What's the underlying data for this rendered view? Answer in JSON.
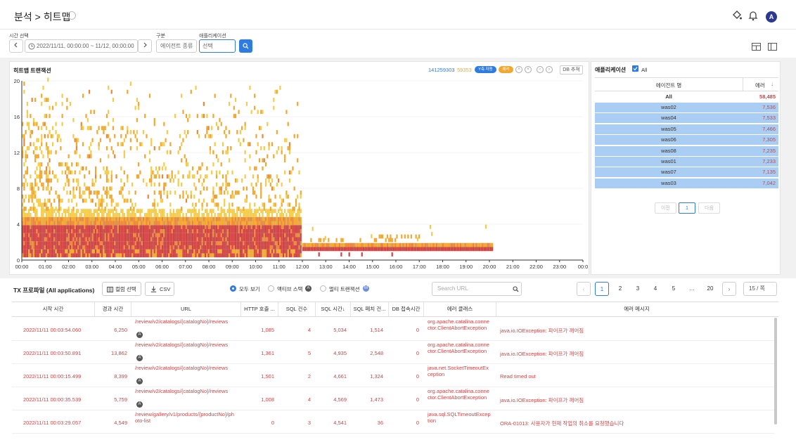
{
  "header": {
    "breadcrumb": "분석 > 히트맵",
    "avatar": "A"
  },
  "filters": {
    "time_label": "시간 선택",
    "time_value": "2022/11/11, 00:00:00 ~ 11/12, 00:00:00",
    "category_label": "구분",
    "category_value": "에이전트 종류",
    "app_label": "애플리케이션",
    "app_placeholder": "선택"
  },
  "heatmap": {
    "title": "히트맵 트랜잭션",
    "count_normal": "141259303",
    "count_error": "59353",
    "pill_yaxis": "Y축 자동",
    "pill_err": "에러",
    "db_button": "DB 추적",
    "accent_blue": "#2f7ce0",
    "error_color": "#d04343",
    "warn_color": "#f0a830"
  },
  "chart_data": {
    "type": "heatmap",
    "title": "히트맵 트랜잭션",
    "x_ticks": [
      "00:00",
      "01:00",
      "02:00",
      "03:00",
      "04:00",
      "05:00",
      "06:00",
      "07:00",
      "08:00",
      "09:00",
      "10:00",
      "11:00",
      "12:00",
      "13:00",
      "14:00",
      "15:00",
      "16:00",
      "17:00",
      "18:00",
      "19:00",
      "20:00",
      "21:00",
      "22:00",
      "23:00",
      "00:0"
    ],
    "y_ticks": [
      "20",
      "16",
      "12",
      "8",
      "4",
      "0"
    ],
    "ylim": [
      0,
      20
    ],
    "xlim": [
      "00:00",
      "24:00"
    ]
  },
  "apps": {
    "title": "애플리케이션",
    "all_label": "All",
    "col_agent": "에이전트 명",
    "col_error": "에러",
    "total_name": "All",
    "total_value": "58,485",
    "rows": [
      {
        "name": "was02",
        "value": "7,536"
      },
      {
        "name": "was04",
        "value": "7,533"
      },
      {
        "name": "was05",
        "value": "7,466"
      },
      {
        "name": "was06",
        "value": "7,305"
      },
      {
        "name": "was08",
        "value": "7,235"
      },
      {
        "name": "was01",
        "value": "7,233"
      },
      {
        "name": "was07",
        "value": "7,135"
      },
      {
        "name": "was03",
        "value": "7,042"
      }
    ],
    "prev": "이전",
    "page": "1",
    "next": "다음"
  },
  "tx": {
    "title": "TX 프로파일 (All applications)",
    "column_select": "컬럼 선택",
    "csv": "CSV",
    "radio_all": "모두 보기",
    "radio_active": "액티브 스택",
    "radio_active_badge": "A",
    "radio_multi": "멀티 트랜잭션",
    "radio_multi_badge": "M",
    "search_placeholder": "Search URL",
    "pages": [
      "1",
      "2",
      "3",
      "4",
      "5",
      "…",
      "20"
    ],
    "per_page": "15 / 쪽",
    "columns": [
      "시작 시간",
      "경과 시간",
      "URL",
      "HTTP 호출 ...",
      "SQL 건수",
      "SQL 시간↓",
      "SQL 페치 건...",
      "DB 접속시간",
      "에러 클래스",
      "에러 메시지"
    ],
    "rows": [
      {
        "start": "2022/11/11 00:03:54.060",
        "elapsed": "6,250",
        "url": "/review/v2/catalogs/{catalogNo}/reviews",
        "http": "1,085",
        "sql_cnt": "4",
        "sql_time": "5,034",
        "fetch": "1,514",
        "db": "0",
        "err_class": "org.apache.catalina.connector.ClientAbortException",
        "err_msg": "java.io.IOException: 파이프가 깨어짐",
        "badge": "A"
      },
      {
        "start": "2022/11/11 00:03:50.891",
        "elapsed": "13,862",
        "url": "/review/v2/catalogs/{catalogNo}/reviews",
        "http": "1,361",
        "sql_cnt": "5",
        "sql_time": "4,935",
        "fetch": "2,548",
        "db": "0",
        "err_class": "org.apache.catalina.connector.ClientAbortException",
        "err_msg": "java.io.IOException: 파이프가 깨어짐",
        "badge": "A"
      },
      {
        "start": "2022/11/11 00:00:15.499",
        "elapsed": "8,399",
        "url": "/review/v2/catalogs/{catalogNo}/reviews",
        "http": "1,501",
        "sql_cnt": "2",
        "sql_time": "4,661",
        "fetch": "1,324",
        "db": "0",
        "err_class": "java.net.SocketTimeoutException",
        "err_msg": "Read timed out",
        "badge": "A"
      },
      {
        "start": "2022/11/11 00:00:35.539",
        "elapsed": "5,759",
        "url": "/review/v2/catalogs/{catalogNo}/reviews",
        "http": "1,008",
        "sql_cnt": "4",
        "sql_time": "4,569",
        "fetch": "1,473",
        "db": "0",
        "err_class": "org.apache.catalina.connector.ClientAbortException",
        "err_msg": "java.io.IOException: 파이프가 깨어짐",
        "badge": "A"
      },
      {
        "start": "2022/11/11 00:03:29.057",
        "elapsed": "4,549",
        "url": "/review/gallery/v1/products/{productNo}/photo-list",
        "http": "0",
        "sql_cnt": "3",
        "sql_time": "4,541",
        "fetch": "36",
        "db": "0",
        "err_class": "java.sql.SQLTimeoutException",
        "err_msg": "ORA-01013: 사용자가 현재 작업의 취소를 요청했습니다",
        "badge": ""
      }
    ]
  }
}
